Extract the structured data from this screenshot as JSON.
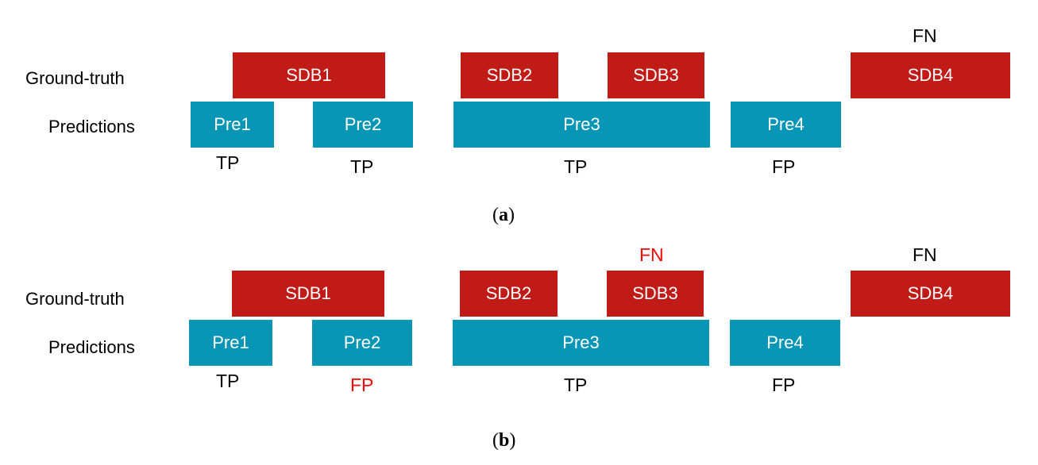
{
  "panels": [
    {
      "id": "a",
      "caption_open": "(",
      "caption_letter": "a",
      "caption_close": ")",
      "row_labels": {
        "ground_truth": "Ground-truth",
        "predictions": "Predictions"
      },
      "ground_truth": [
        {
          "label": "SDB1"
        },
        {
          "label": "SDB2"
        },
        {
          "label": "SDB3"
        },
        {
          "label": "SDB4"
        }
      ],
      "predictions": [
        {
          "label": "Pre1"
        },
        {
          "label": "Pre2"
        },
        {
          "label": "Pre3"
        },
        {
          "label": "Pre4"
        }
      ],
      "tags_top": {
        "sdb3": "",
        "sdb4": "FN"
      },
      "tags_bottom": {
        "pre1": "TP",
        "pre2": "TP",
        "pre3": "TP",
        "pre4": "FP"
      }
    },
    {
      "id": "b",
      "caption_open": "(",
      "caption_letter": "b",
      "caption_close": ")",
      "row_labels": {
        "ground_truth": "Ground-truth",
        "predictions": "Predictions"
      },
      "ground_truth": [
        {
          "label": "SDB1"
        },
        {
          "label": "SDB2"
        },
        {
          "label": "SDB3"
        },
        {
          "label": "SDB4"
        }
      ],
      "predictions": [
        {
          "label": "Pre1"
        },
        {
          "label": "Pre2"
        },
        {
          "label": "Pre3"
        },
        {
          "label": "Pre4"
        }
      ],
      "tags_top": {
        "sdb3": "FN",
        "sdb4": "FN"
      },
      "tags_bottom": {
        "pre1": "TP",
        "pre2": "FP",
        "pre3": "TP",
        "pre4": "FP"
      }
    }
  ],
  "colors": {
    "ground_truth": "#c11b17",
    "prediction": "#0896b6",
    "highlight_tag": "#ff0000"
  }
}
